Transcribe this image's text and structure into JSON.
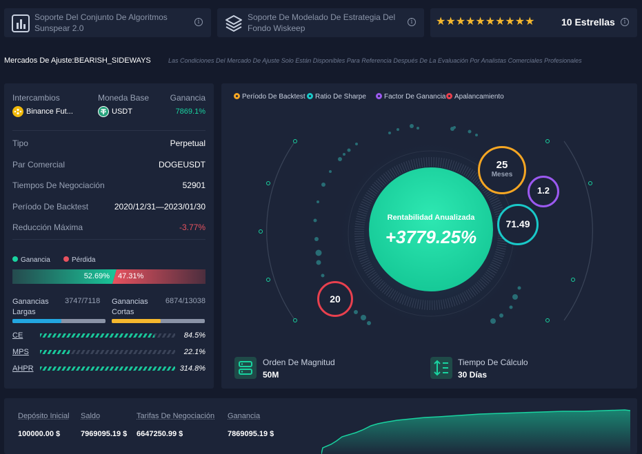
{
  "header": {
    "card1_text": "Soporte Del Conjunto De Algoritmos Sunspear 2.0",
    "card2_text": "Soporte De Modelado De Estrategia Del Fondo Wiskeep",
    "stars_count": 10,
    "stars_label": "10 Estrellas",
    "info_glyph": "i"
  },
  "market": {
    "label": "Mercados De Ajuste:BEARISH_SIDEWAYS",
    "note": "Las Condiciones Del Mercado De Ajuste Solo Están Disponibles Para Referencia Después De La Evaluación Por Analistas Comerciales Profesionales"
  },
  "left": {
    "col_exchange": "Intercambios",
    "col_currency": "Moneda Base",
    "col_profit": "Ganancia",
    "exchange": "Binance Fut...",
    "currency": "USDT",
    "profit": "7869.1%",
    "rows": [
      {
        "label": "Tipo",
        "value": "Perpetual"
      },
      {
        "label": "Par Comercial",
        "value": "DOGEUSDT"
      },
      {
        "label": "Tiempos De Negociación",
        "value": "52901"
      },
      {
        "label": "Período De Backtest",
        "value": "2020/12/31—2023/01/30"
      },
      {
        "label": "Reducción Máxima",
        "value": "-3.77%"
      }
    ],
    "legend_gain": "Ganancia",
    "legend_loss": "Pérdida",
    "gain_pct": "52.69%",
    "loss_pct": "47.31%",
    "gain_fraction": 0.5269,
    "long_label": "Ganancias Largas",
    "long_value": "3747/7118",
    "long_fraction": 0.526,
    "short_label": "Ganancias Cortas",
    "short_value": "6874/13038",
    "short_fraction": 0.527,
    "metrics": [
      {
        "name": "CE",
        "value": "84.5%",
        "fraction": 0.845
      },
      {
        "name": "MPS",
        "value": "22.1%",
        "fraction": 0.221
      },
      {
        "name": "AHPR",
        "value": "314.8%",
        "fraction": 1.0
      }
    ]
  },
  "center": {
    "legend": [
      {
        "label": "Período De Backtest",
        "color": "#f5a623"
      },
      {
        "label": "Ratio De Sharpe",
        "color": "#19c8c8"
      },
      {
        "label": "Factor De Ganancia",
        "color": "#9b59f0"
      },
      {
        "label": "Apalancamiento",
        "color": "#e8404e"
      }
    ],
    "main_label": "Rentabilidad Anualizada",
    "main_value": "+3779.25%",
    "period_value": "25",
    "period_unit": "Meses",
    "factor_value": "1.2",
    "sharpe_value": "71.49",
    "leverage_value": "20",
    "magnitude_label": "Orden De Magnitud",
    "magnitude_value": "50M",
    "calc_label": "Tiempo De Cálculo",
    "calc_value": "30 Días"
  },
  "footer": {
    "deposit_label": "Depósito Inicial",
    "deposit_value": "100000.00 $",
    "balance_label": "Saldo",
    "balance_value": "7969095.19 $",
    "fees_label": "Tarifas De Negociación",
    "fees_value": "6647250.99 $",
    "profit_label": "Ganancia",
    "profit_value": "7869095.19 $"
  },
  "colors": {
    "accent_green": "#19d3a0",
    "loss_red": "#e8525f",
    "star": "#f5b82e"
  }
}
